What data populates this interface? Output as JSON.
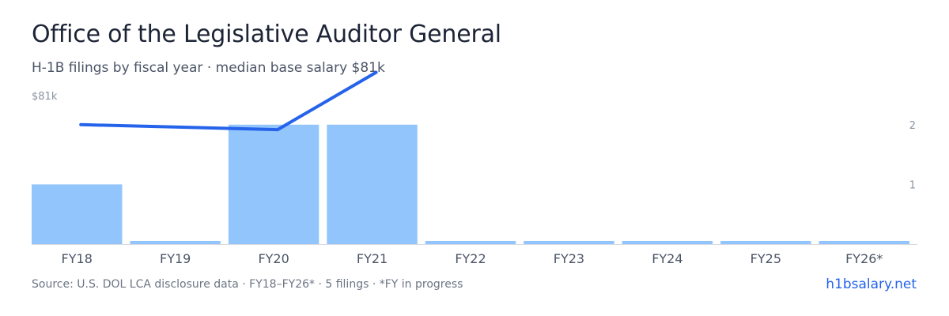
{
  "header": {
    "title": "Office of the Legislative Auditor General",
    "subtitle": "H-1B filings by fiscal year · median base salary $81k"
  },
  "footer": {
    "source": "Source: U.S. DOL LCA disclosure data · FY18–FY26* · 5 filings · *FY in progress",
    "brand": "h1bsalary.net"
  },
  "chart_data": {
    "type": "bar",
    "categories": [
      "FY18",
      "FY19",
      "FY20",
      "FY21",
      "FY22",
      "FY23",
      "FY24",
      "FY25",
      "FY26*"
    ],
    "series": [
      {
        "type": "bar",
        "axis": "right",
        "values": [
          1,
          0,
          2,
          2,
          0,
          0,
          0,
          0,
          0
        ]
      },
      {
        "type": "line",
        "axis": "left",
        "values": [
          80.3,
          null,
          80.1,
          82.4,
          null,
          null,
          null,
          null,
          null
        ]
      }
    ],
    "left_axis": {
      "tick_labels": [
        "$81k"
      ],
      "ylim": [
        75.5,
        81.5
      ]
    },
    "right_axis": {
      "tick_labels": [
        "1",
        "2"
      ],
      "ylim": [
        0,
        2.5
      ]
    },
    "grid": false,
    "legend": "none",
    "colors": {
      "bar": "#93c5fd",
      "line": "#2563eb",
      "axis_text": "#8a93a2",
      "tick_label": "#4b5566",
      "baseline": "#d6dbe3"
    }
  }
}
